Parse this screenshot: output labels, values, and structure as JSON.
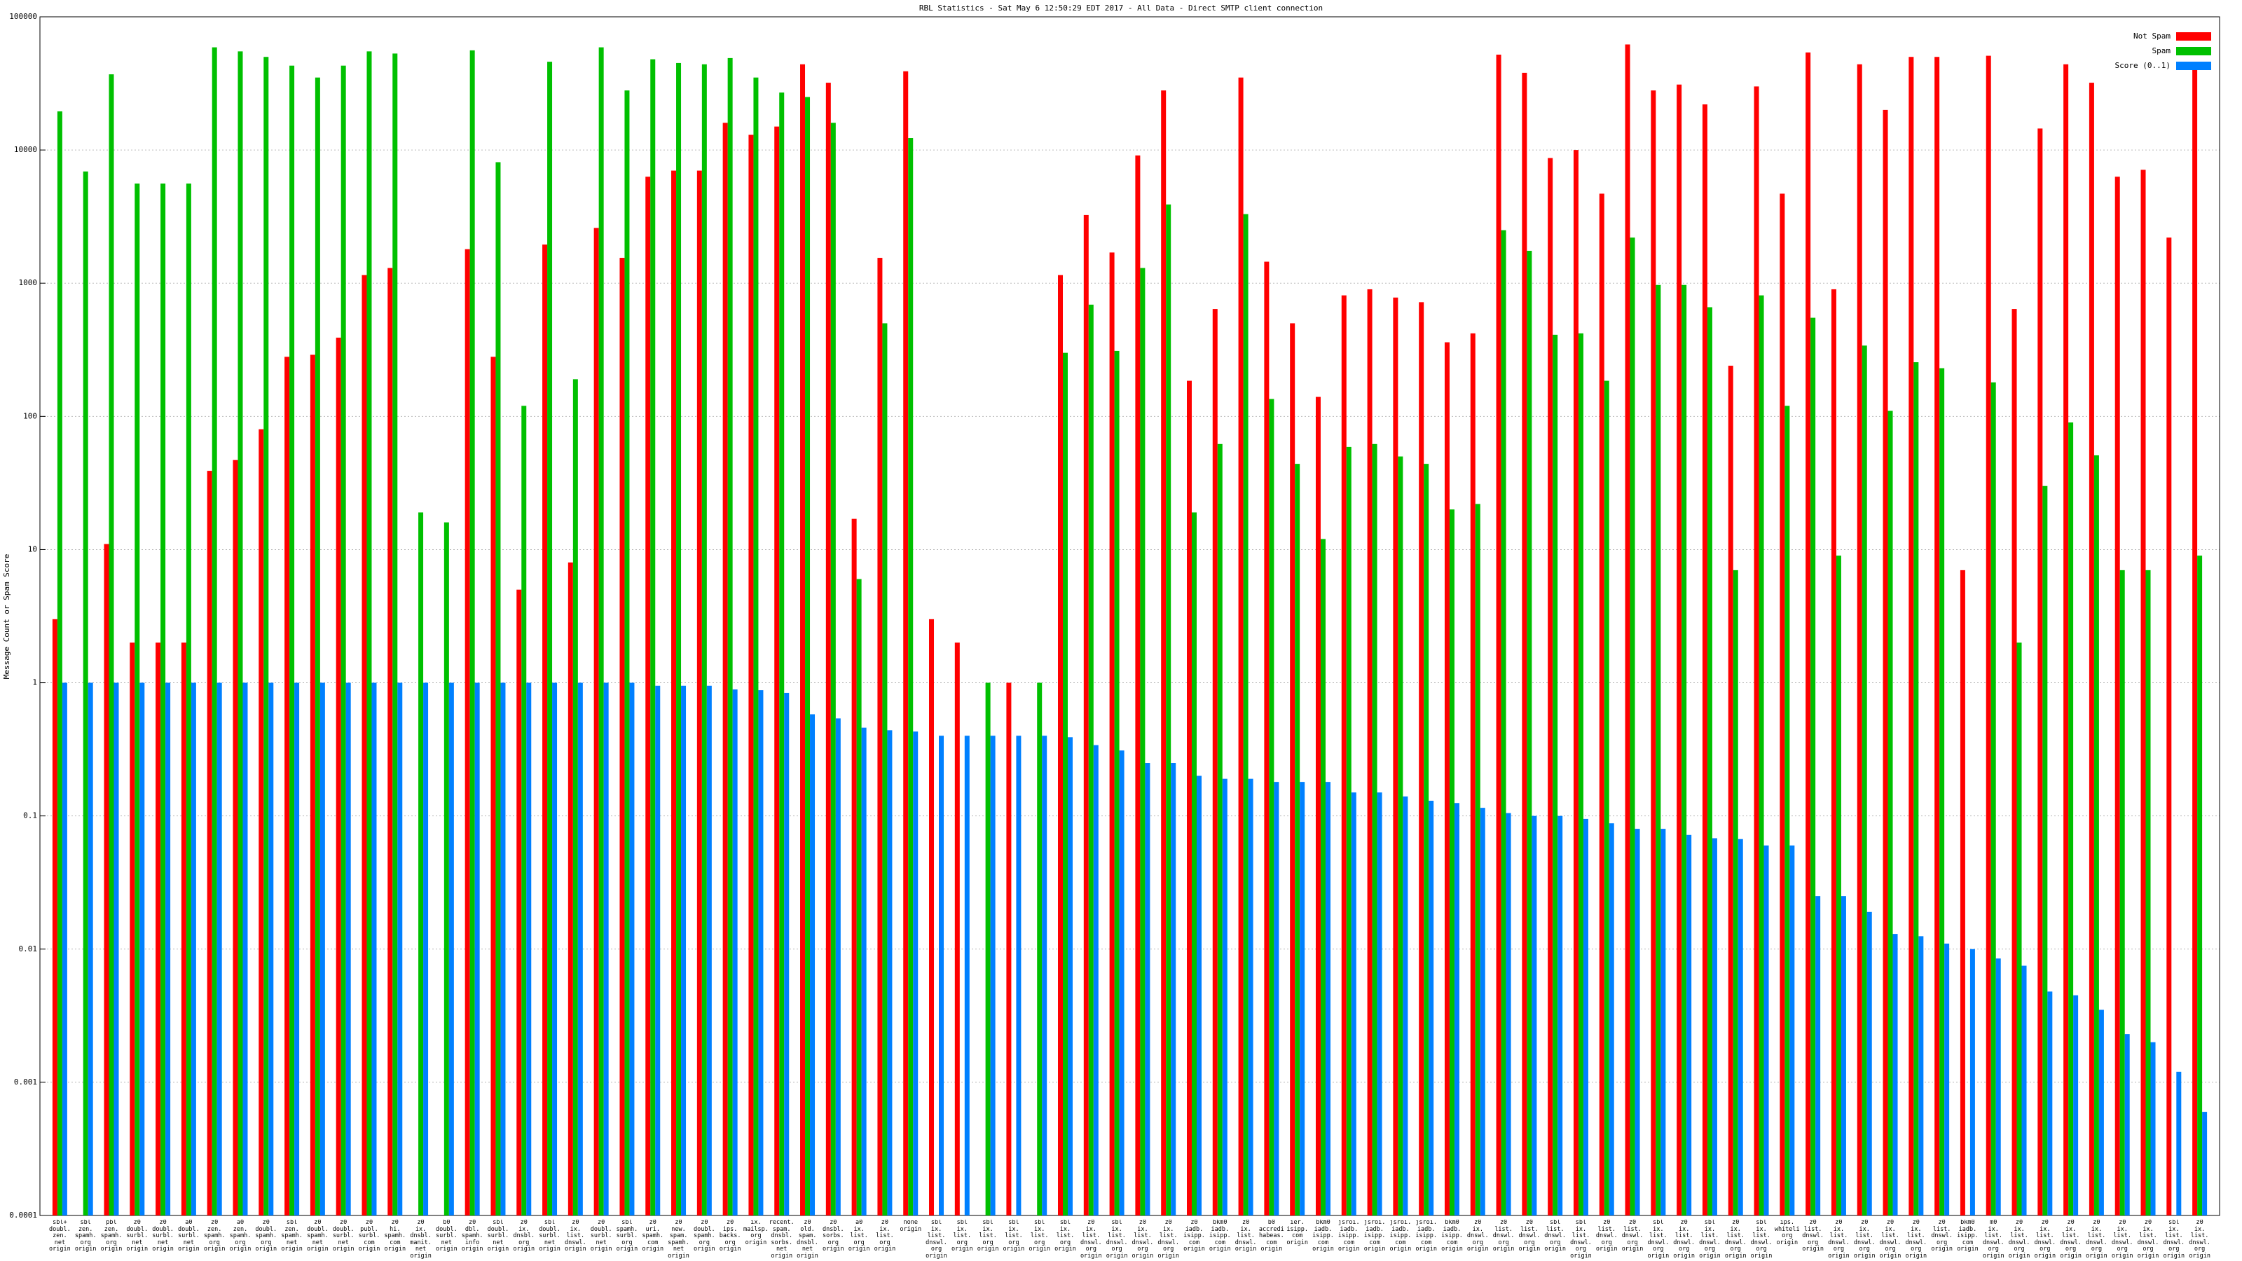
{
  "chart_data": {
    "type": "bar",
    "title": "RBL Statistics - Sat May  6 12:50:29 EDT 2017 - All Data - Direct SMTP client connection",
    "y_label": "Message Count or Spam Score",
    "log_scale": true,
    "grid": true,
    "legend": "top-right",
    "ylim": [
      0.0001,
      100000
    ],
    "yticks": [
      0.0001,
      0.001,
      0.01,
      0.1,
      1,
      10,
      100,
      1000,
      10000,
      100000
    ],
    "categories": [
      "sbl+ doubl. zen. net origin",
      "sbl zen. spamh. org origin",
      "pbl zen. spamh. org origin",
      "z0 doubl. surbl. net origin",
      "z0 doubl. surbl. net origin",
      "a0 doubl. surbl. net origin",
      "z0 zen. spamh. org origin",
      "a0 zen. spamh. org origin",
      "z0 doubl. spamh. org origin",
      "sbl zen. spamh. net origin",
      "z0 doubl. spamh. net origin",
      "z0 doubl. surbl. net origin",
      "z0 publ. surbl. com origin",
      "z0 hi. spamh. com origin",
      "z0 ix. dnsbl. manit. net origin",
      "b0 doubl. surbl. net origin",
      "z0 dbl. spamh. info origin",
      "sbl doubl. surbl. net origin",
      "z0 ix. dnsbl. org origin",
      "sbl doubl. surbl. net origin",
      "z0 ix. list. dnswl. origin",
      "z0 doubl. surbl. net origin",
      "sbl spamh. surbl. org origin",
      "z0 uri. spamh. com origin",
      "z0 new. spam. spamh. net origin",
      "z0 doubl. spamh. org origin",
      "z0 ips. backs. org origin",
      "ix. mailsp. org origin",
      "recent. spam. dnsbl. sorbs. net origin",
      "z0 old. spam. dnsbl. net origin",
      "z0 dnsbl. sorbs. org origin",
      "a0 ix. list. org origin",
      "z0 ix. list. org origin",
      "none origin",
      "sbl ix. list. dnswl. org origin",
      "sbl ix. list. org origin",
      "sbl ix. list. org origin",
      "sbl ix. list. org origin",
      "sbl ix. list. org origin",
      "sbl ix. list. org origin",
      "z0 ix. list. dnswl. org origin",
      "sbl ix. list. dnswl. org origin",
      "z0 ix. list. dnswl. org origin",
      "z0 ix. list. dnswl. org origin",
      "z0 iadb. isipp. com origin",
      "bkm0 iadb. isipp. com origin",
      "z0 ix. list. dnswl. origin",
      "b0 accredit. habeas. com origin",
      "ier. isipp. com origin",
      "bkm0 iadb. isipp. com origin",
      "jsroi. iadb. isipp. com origin",
      "jsroi. iadb. isipp. com origin",
      "jsroi. iadb. isipp. com origin",
      "jsroi. iadb. isipp. com origin",
      "bkm0 iadb. isipp. com origin",
      "z0 ix. dnswl. org origin",
      "z0 list. dnswl. org origin",
      "z0 list. dnswl. org origin",
      "sbl list. dnswl. org origin",
      "sbl ix. list. dnswl. org origin",
      "z0 list. dnswl. org origin",
      "z0 list. dnswl. org origin",
      "sbl ix. list. dnswl. org origin",
      "z0 ix. list. dnswl. org origin",
      "sbl ix. list. dnswl. org origin",
      "z0 ix. list. dnswl. org origin",
      "sbl ix. list. dnswl. org origin",
      "ips. whitelisted. org origin",
      "z0 list. dnswl. org origin",
      "z0 ix. list. dnswl. org origin",
      "z0 ix. list. dnswl. org origin",
      "z0 ix. list. dnswl. org origin",
      "z0 ix. list. dnswl. org origin",
      "z0 list. dnswl. org origin",
      "bkm0 iadb. isipp. com origin",
      "m0 ix. list. dnswl. org origin",
      "z0 ix. list. dnswl. org origin",
      "z0 ix. list. dnswl. org origin",
      "z0 ix. list. dnswl. org origin",
      "z0 ix. list. dnswl. org origin",
      "z0 ix. list. dnswl. org origin",
      "z0 ix. list. dnswl. org origin",
      "sbl ix. list. dnswl. org origin",
      "z0 ix. list. dnswl. org origin"
    ],
    "series": [
      {
        "name": "Not Spam",
        "color": "#ff0000",
        "values": [
          3,
          null,
          11,
          2,
          2,
          2,
          39,
          47,
          80,
          280,
          290,
          390,
          1150,
          1300,
          null,
          null,
          1800,
          280,
          5,
          1950,
          8,
          2600,
          1550,
          6300,
          7000,
          7000,
          16000,
          13000,
          15000,
          44000,
          32000,
          17,
          1550,
          39000,
          3,
          2,
          null,
          1,
          null,
          1150,
          3250,
          1700,
          9100,
          28000,
          185,
          640,
          35000,
          1450,
          500,
          140,
          810,
          900,
          780,
          720,
          360,
          420,
          52000,
          38000,
          8700,
          10000,
          4700,
          62000,
          28000,
          31000,
          22000,
          240,
          30000,
          4700,
          54000,
          900,
          44000,
          20000,
          50000,
          50000,
          7,
          51000,
          640,
          14500,
          44000,
          32000,
          6300,
          7100,
          2200,
          41000
        ]
      },
      {
        "name": "Spam",
        "color": "#00c000",
        "values": [
          19500,
          6900,
          37000,
          5600,
          5600,
          5600,
          59000,
          55000,
          50000,
          43000,
          35000,
          43000,
          55000,
          53000,
          19,
          16,
          56000,
          8100,
          120,
          46000,
          190,
          59000,
          28000,
          48000,
          45000,
          44000,
          49000,
          35000,
          27000,
          25000,
          16000,
          6,
          500,
          12300,
          null,
          null,
          1,
          null,
          1,
          300,
          690,
          310,
          1300,
          3900,
          19,
          62,
          3300,
          135,
          44,
          12,
          59,
          62,
          50,
          44,
          20,
          22,
          2500,
          1750,
          410,
          420,
          185,
          2200,
          970,
          970,
          660,
          7,
          810,
          120,
          550,
          9,
          340,
          110,
          255,
          230,
          null,
          180,
          2,
          30,
          90,
          51,
          7,
          7,
          null,
          9
        ]
      },
      {
        "name": "Score (0..1)",
        "color": "#0080ff",
        "values": [
          1,
          1,
          1,
          1,
          1,
          1,
          1,
          1,
          1,
          1,
          1,
          1,
          1,
          1,
          1,
          1,
          1,
          1,
          1,
          1,
          1,
          1,
          1,
          0.95,
          0.95,
          0.95,
          0.89,
          0.88,
          0.84,
          0.58,
          0.54,
          0.46,
          0.44,
          0.43,
          0.4,
          0.4,
          0.4,
          0.4,
          0.4,
          0.39,
          0.34,
          0.31,
          0.25,
          0.25,
          0.2,
          0.19,
          0.19,
          0.18,
          0.18,
          0.18,
          0.15,
          0.15,
          0.14,
          0.13,
          0.125,
          0.115,
          0.105,
          0.1,
          0.1,
          0.095,
          0.088,
          0.08,
          0.08,
          0.072,
          0.068,
          0.067,
          0.06,
          0.06,
          0.025,
          0.025,
          0.019,
          0.013,
          0.0125,
          0.011,
          0.01,
          0.0085,
          0.0075,
          0.0048,
          0.0045,
          0.0035,
          0.0023,
          0.002,
          0.0012,
          0.0006
        ]
      }
    ]
  }
}
